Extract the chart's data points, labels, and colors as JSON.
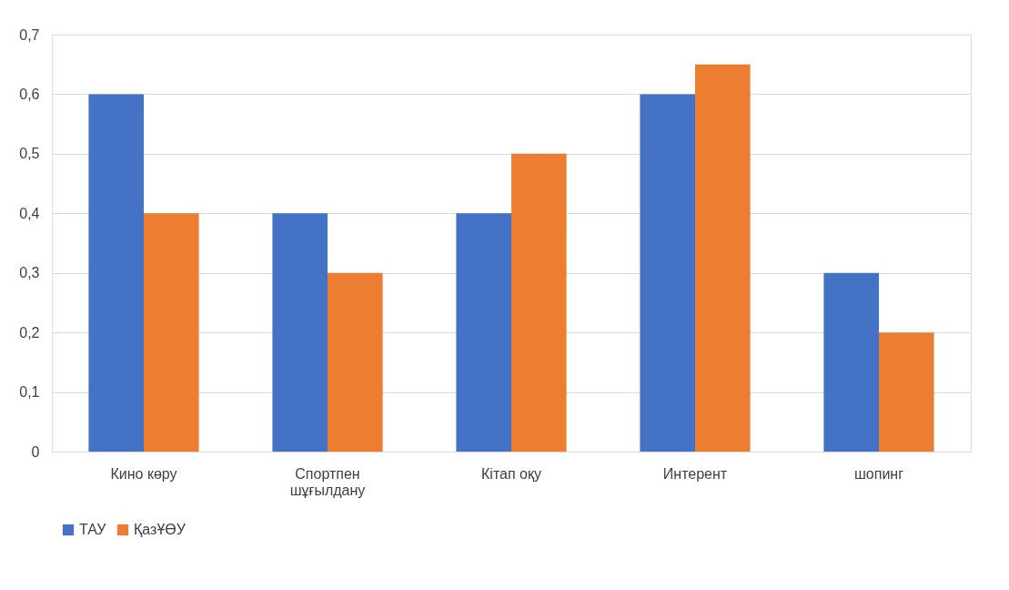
{
  "chart_data": {
    "type": "bar",
    "categories": [
      "Кино көру",
      "Спортпен шұғылдану",
      "Кітап оқу",
      "Интерент",
      "шопинг"
    ],
    "series": [
      {
        "name": "ТАУ",
        "color": "#4472c4",
        "values": [
          0.6,
          0.4,
          0.4,
          0.6,
          0.3
        ]
      },
      {
        "name": "ҚазҰӨУ",
        "color": "#ed7d31",
        "values": [
          0.4,
          0.3,
          0.5,
          0.65,
          0.2
        ]
      }
    ],
    "ylim": [
      0,
      0.7
    ],
    "yticks": [
      {
        "value": 0,
        "label": "0"
      },
      {
        "value": 0.1,
        "label": "0,1"
      },
      {
        "value": 0.2,
        "label": "0,2"
      },
      {
        "value": 0.3,
        "label": "0,3"
      },
      {
        "value": 0.4,
        "label": "0,4"
      },
      {
        "value": 0.5,
        "label": "0,5"
      },
      {
        "value": 0.6,
        "label": "0,6"
      },
      {
        "value": 0.7,
        "label": "0,7"
      }
    ],
    "grid": "y",
    "legend": "bottom"
  }
}
